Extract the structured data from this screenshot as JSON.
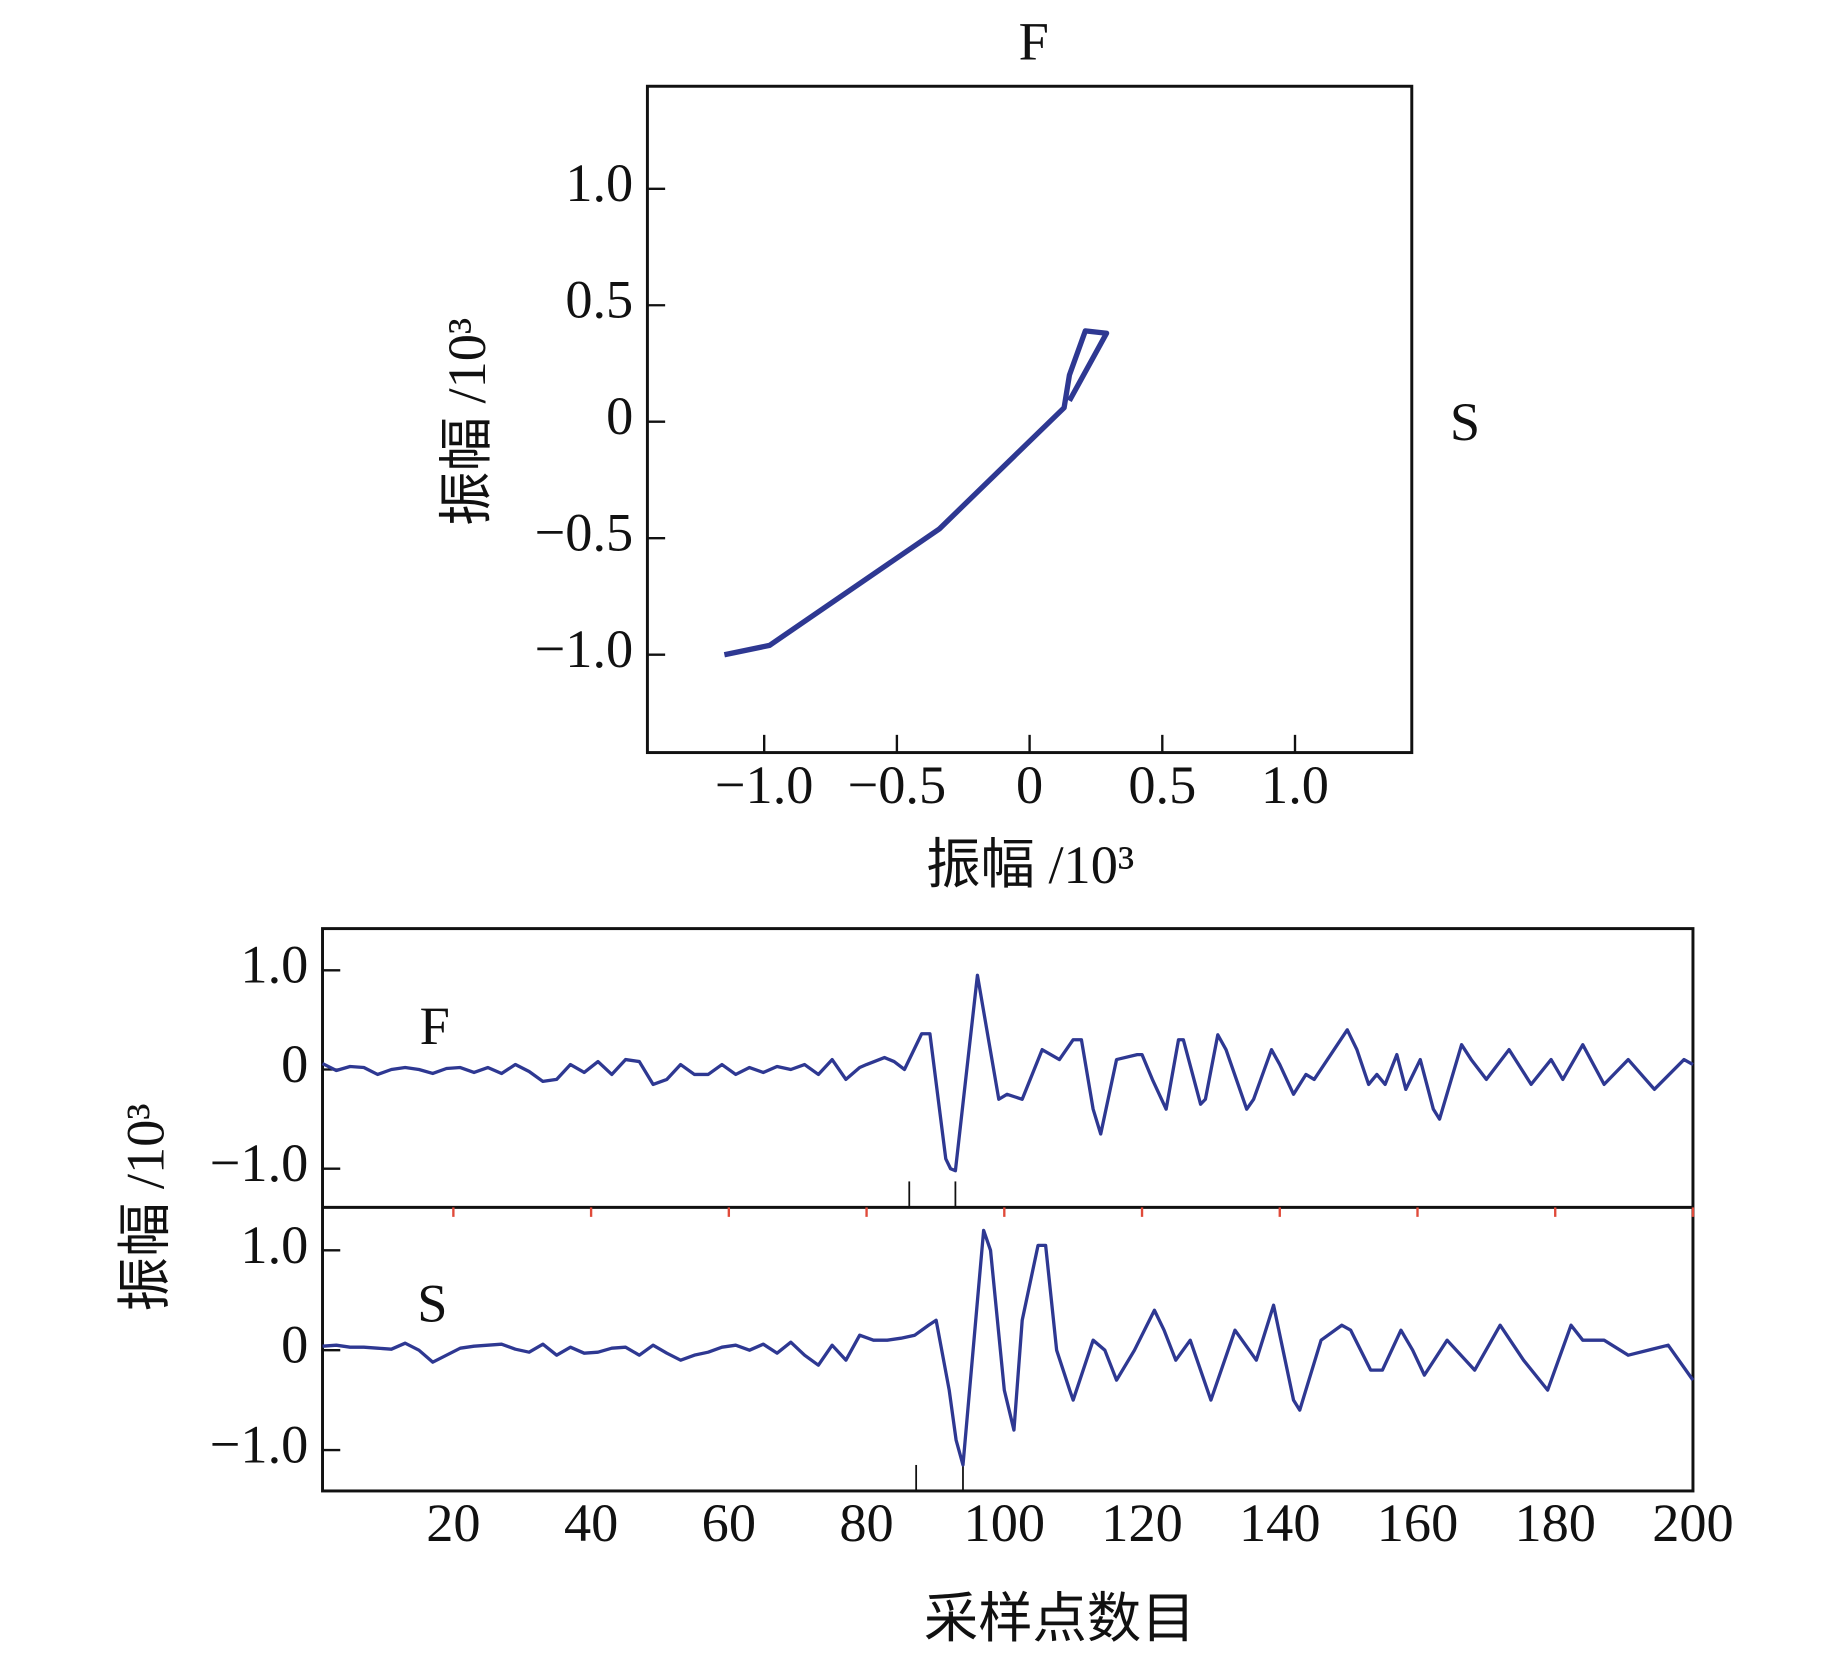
{
  "chart_data": [
    {
      "type": "line",
      "top_label": "F",
      "right_label": "S",
      "xlabel": "振幅 /10³",
      "ylabel": "振幅 /10³",
      "xlim": [
        -1.44,
        1.44
      ],
      "ylim": [
        -1.42,
        1.44
      ],
      "xticks": [
        {
          "value": -1,
          "label": "−1.0"
        },
        {
          "value": -0.5,
          "label": "−0.5"
        },
        0,
        0.5,
        {
          "value": 1,
          "label": "1.0"
        }
      ],
      "yticks": [
        {
          "value": -1,
          "label": "−1.0"
        },
        {
          "value": -0.5,
          "label": "−0.5"
        },
        0,
        0.5,
        {
          "value": 1,
          "label": "1.0"
        }
      ],
      "series": [
        {
          "color": "#2e3892",
          "x": [
            -1.15,
            -0.98,
            -0.34,
            0.13,
            0.15,
            0.21,
            0.29,
            0.15
          ],
          "values": [
            -1.0,
            -0.96,
            -0.46,
            0.06,
            0.2,
            0.39,
            0.38,
            0.09
          ]
        }
      ]
    },
    {
      "type": "line",
      "label": "F",
      "ylabel": "振幅 /10³",
      "xlim": [
        1,
        200
      ],
      "ylim": [
        -1.39,
        1.42
      ],
      "yticks": [
        {
          "value": -1,
          "label": "−1.0"
        },
        0,
        {
          "value": 1,
          "label": "1.0"
        }
      ],
      "picks": [
        86.2,
        92.9
      ],
      "series": [
        {
          "color": "#2e3892",
          "x": [
            1,
            3,
            5,
            7,
            9,
            11,
            13,
            15,
            17,
            19,
            21,
            23,
            25,
            27,
            29,
            31,
            33,
            35,
            37,
            39,
            41,
            43,
            45,
            47,
            49,
            51,
            53,
            55,
            57,
            59,
            61,
            63,
            65,
            67,
            69,
            71,
            73,
            75,
            77,
            79,
            80,
            82.6,
            84,
            85.5,
            88,
            89.2,
            91.5,
            92.2,
            92.9,
            96.1,
            99.2,
            100.4,
            102.6,
            105.5,
            108,
            110,
            111.2,
            112.9,
            114,
            116.3,
            119.3,
            120,
            121.5,
            123.5,
            125.3,
            126,
            128.5,
            129.2,
            131,
            132.2,
            135.2,
            136.2,
            138.8,
            140,
            142,
            143.8,
            145,
            149.8,
            151.2,
            152.9,
            154.1,
            155.3,
            157,
            158.3,
            160.4,
            162.3,
            163.2,
            166.4,
            167.8,
            170,
            173.3,
            176.5,
            179.4,
            181.1,
            184,
            187.1,
            190.6,
            194.4,
            198.7,
            200
          ],
          "values": [
            0.06,
            -0.01,
            0.03,
            0.02,
            -0.05,
            0,
            0.02,
            0,
            -0.04,
            0.01,
            0.02,
            -0.03,
            0.02,
            -0.04,
            0.05,
            -0.02,
            -0.12,
            -0.1,
            0.05,
            -0.03,
            0.08,
            -0.05,
            0.1,
            0.08,
            -0.15,
            -0.1,
            0.05,
            -0.05,
            -0.05,
            0.05,
            -0.05,
            0.02,
            -0.03,
            0.03,
            0,
            0.05,
            -0.05,
            0.1,
            -0.1,
            0.02,
            0.05,
            0.12,
            0.08,
            0,
            0.36,
            0.36,
            -0.9,
            -1.0,
            -1.02,
            0.95,
            -0.3,
            -0.25,
            -0.3,
            0.2,
            0.1,
            0.3,
            0.3,
            -0.4,
            -0.65,
            0.1,
            0.15,
            0.15,
            -0.1,
            -0.4,
            0.3,
            0.3,
            -0.35,
            -0.3,
            0.35,
            0.2,
            -0.4,
            -0.3,
            0.2,
            0.05,
            -0.25,
            -0.05,
            -0.1,
            0.4,
            0.2,
            -0.15,
            -0.05,
            -0.15,
            0.15,
            -0.2,
            0.1,
            -0.4,
            -0.5,
            0.25,
            0.1,
            -0.1,
            0.2,
            -0.15,
            0.1,
            -0.1,
            0.25,
            -0.15,
            0.1,
            -0.2,
            0.1,
            0.05
          ]
        }
      ]
    },
    {
      "type": "line",
      "label": "S",
      "xlabel": "采样点数目",
      "xlim": [
        1,
        200
      ],
      "ylim": [
        -1.41,
        1.43
      ],
      "xticks": [
        20,
        40,
        60,
        80,
        100,
        120,
        140,
        160,
        180,
        200
      ],
      "yticks": [
        {
          "value": -1,
          "label": "−1.0"
        },
        0,
        {
          "value": 1,
          "label": "1.0"
        }
      ],
      "picks": [
        87.2,
        94
      ],
      "series": [
        {
          "color": "#2e3892",
          "x": [
            1,
            3,
            5,
            7,
            9,
            11,
            13,
            15,
            17,
            19,
            21,
            23,
            25,
            27,
            29,
            31,
            33,
            35,
            37,
            39,
            41,
            43,
            45,
            47,
            49,
            51,
            53,
            55,
            57,
            59,
            61,
            63,
            65,
            67,
            69,
            71,
            73,
            75,
            77,
            79,
            81,
            83,
            85,
            87,
            89,
            90.1,
            92,
            93,
            94,
            97,
            98,
            100,
            101.4,
            102.6,
            104.9,
            106,
            107.6,
            109.5,
            110,
            112.9,
            114.6,
            116.3,
            118.9,
            121.8,
            123.2,
            124.9,
            127,
            130,
            133.5,
            136.6,
            139.1,
            142,
            142.9,
            146,
            149,
            150.3,
            153.2,
            154.9,
            157.6,
            159.3,
            161,
            164.3,
            168.3,
            172,
            175.4,
            178.9,
            182.3,
            184,
            187.1,
            190.6,
            196.4,
            200
          ],
          "values": [
            0.04,
            0.05,
            0.03,
            0.03,
            0.02,
            0.01,
            0.07,
            0,
            -0.12,
            -0.05,
            0.02,
            0.04,
            0.05,
            0.06,
            0.01,
            -0.02,
            0.06,
            -0.05,
            0.03,
            -0.03,
            -0.02,
            0.02,
            0.03,
            -0.05,
            0.05,
            -0.03,
            -0.1,
            -0.05,
            -0.02,
            0.03,
            0.05,
            0,
            0.06,
            -0.03,
            0.08,
            -0.05,
            -0.15,
            0.05,
            -0.1,
            0.15,
            0.1,
            0.1,
            0.12,
            0.15,
            0.25,
            0.3,
            -0.4,
            -0.9,
            -1.15,
            1.2,
            1.0,
            -0.4,
            -0.8,
            0.3,
            1.05,
            1.05,
            0,
            -0.4,
            -0.5,
            0.1,
            0,
            -0.3,
            0,
            0.4,
            0.2,
            -0.1,
            0.1,
            -0.5,
            0.2,
            -0.1,
            0.45,
            -0.5,
            -0.6,
            0.1,
            0.25,
            0.2,
            -0.2,
            -0.2,
            0.2,
            0,
            -0.25,
            0.1,
            -0.2,
            0.25,
            -0.1,
            -0.4,
            0.25,
            0.1,
            0.1,
            -0.05,
            0.05,
            -0.3
          ]
        }
      ]
    }
  ]
}
